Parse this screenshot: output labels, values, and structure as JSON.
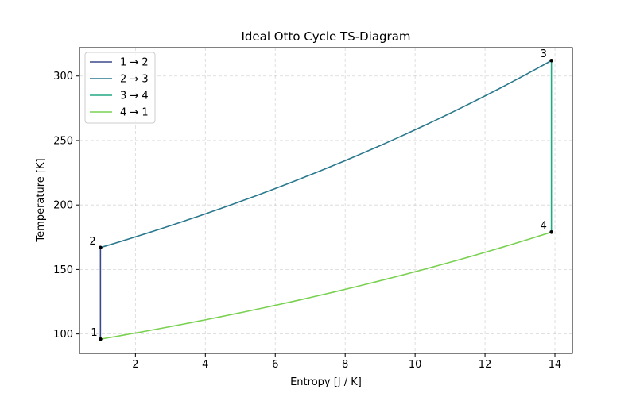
{
  "chart_data": {
    "type": "line",
    "title": "Ideal Otto Cycle TS-Diagram",
    "xlabel": "Entropy [J / K]",
    "ylabel": "Temperature [K]",
    "xlim": [
      0.4,
      14.5
    ],
    "ylim": [
      85,
      322
    ],
    "xticks": [
      2,
      4,
      6,
      8,
      10,
      12,
      14
    ],
    "yticks": [
      100,
      150,
      200,
      250,
      300
    ],
    "grid": true,
    "legend_position": "top-left",
    "states": [
      {
        "label": "1",
        "s": 1.0,
        "T": 96
      },
      {
        "label": "2",
        "s": 1.0,
        "T": 167
      },
      {
        "label": "3",
        "s": 13.9,
        "T": 312
      },
      {
        "label": "4",
        "s": 13.9,
        "T": 179
      }
    ],
    "series": [
      {
        "name": "1 → 2",
        "color": "#3b4a8c",
        "from": 0,
        "to": 1,
        "curve": "vertical"
      },
      {
        "name": "2 → 3",
        "color": "#2a788e",
        "from": 1,
        "to": 2,
        "curve": "exponential"
      },
      {
        "name": "3 → 4",
        "color": "#22a884",
        "from": 2,
        "to": 3,
        "curve": "vertical"
      },
      {
        "name": "4 → 1",
        "color": "#7ad151",
        "from": 3,
        "to": 0,
        "curve": "exponential"
      }
    ]
  }
}
